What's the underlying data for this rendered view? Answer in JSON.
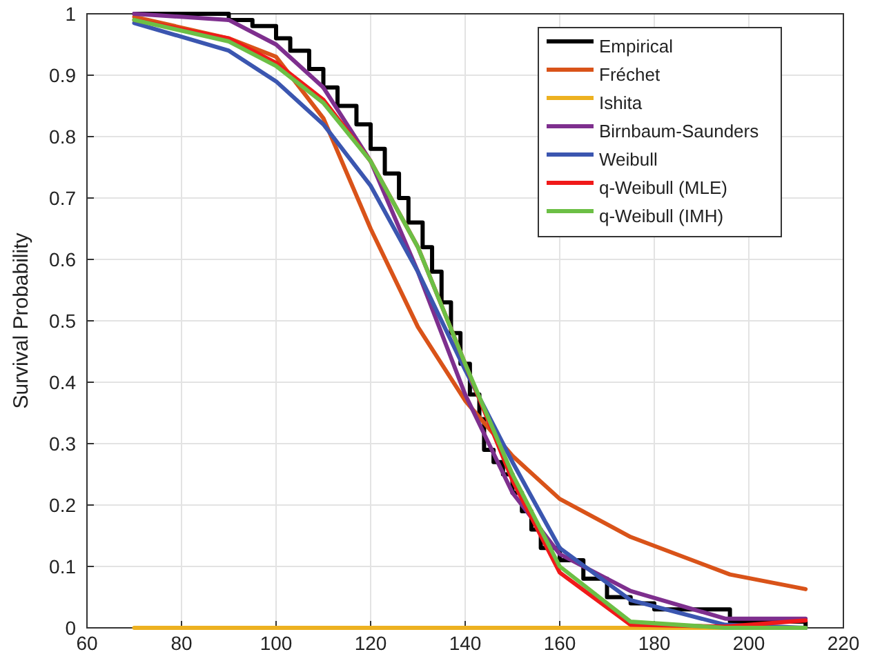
{
  "chart_data": {
    "type": "line",
    "ylabel": "Survival Probability",
    "xlim": [
      60,
      220
    ],
    "xticks": [
      60,
      80,
      100,
      120,
      140,
      160,
      180,
      200,
      220
    ],
    "ylim": [
      0,
      1
    ],
    "yticks": [
      0,
      0.1,
      0.2,
      0.3,
      0.4,
      0.5,
      0.6,
      0.7,
      0.8,
      0.9,
      1
    ],
    "grid": true,
    "legend": "top right",
    "series": [
      {
        "name": "Empirical",
        "type": "step",
        "color": "#000000",
        "x": [
          70,
          90,
          95,
          100,
          103,
          107,
          110,
          113,
          117,
          120,
          123,
          126,
          128,
          131,
          133,
          135,
          137,
          139,
          141,
          143,
          144,
          146,
          148,
          150,
          152,
          154,
          156,
          160,
          165,
          170,
          175,
          180,
          196,
          212
        ],
        "values": [
          1.0,
          0.99,
          0.98,
          0.96,
          0.94,
          0.91,
          0.88,
          0.85,
          0.82,
          0.78,
          0.74,
          0.7,
          0.66,
          0.62,
          0.58,
          0.53,
          0.48,
          0.43,
          0.38,
          0.34,
          0.29,
          0.27,
          0.25,
          0.22,
          0.19,
          0.16,
          0.13,
          0.11,
          0.08,
          0.05,
          0.04,
          0.03,
          0.01,
          0.0
        ]
      },
      {
        "name": "Fréchet",
        "color": "#d95319",
        "x": [
          70,
          90,
          100,
          110,
          120,
          130,
          140,
          150,
          160,
          175,
          196,
          212
        ],
        "values": [
          0.995,
          0.96,
          0.93,
          0.83,
          0.65,
          0.49,
          0.37,
          0.28,
          0.21,
          0.148,
          0.087,
          0.063
        ]
      },
      {
        "name": "Ishita",
        "color": "#edb120",
        "x": [
          70,
          212
        ],
        "values": [
          0,
          0
        ]
      },
      {
        "name": "Birnbaum-Saunders",
        "color": "#7e2f8e",
        "x": [
          70,
          90,
          100,
          110,
          120,
          130,
          140,
          150,
          160,
          175,
          195,
          212
        ],
        "values": [
          1.0,
          0.99,
          0.95,
          0.88,
          0.76,
          0.58,
          0.38,
          0.22,
          0.12,
          0.06,
          0.015,
          0.015
        ]
      },
      {
        "name": "Weibull",
        "color": "#3b56b0",
        "x": [
          70,
          90,
          100,
          110,
          120,
          130,
          140,
          150,
          160,
          175,
          195,
          212
        ],
        "values": [
          0.985,
          0.94,
          0.89,
          0.82,
          0.72,
          0.58,
          0.42,
          0.27,
          0.13,
          0.045,
          0.005,
          0.0
        ]
      },
      {
        "name": "q-Weibull (MLE)",
        "color": "#f01a1a",
        "x": [
          70,
          90,
          100,
          110,
          120,
          130,
          140,
          150,
          160,
          175,
          195,
          212
        ],
        "values": [
          0.99,
          0.96,
          0.92,
          0.86,
          0.76,
          0.62,
          0.43,
          0.24,
          0.09,
          0.005,
          0.002,
          0.012
        ]
      },
      {
        "name": "q-Weibull (IMH)",
        "color": "#6cbf45",
        "x": [
          70,
          90,
          100,
          110,
          120,
          130,
          140,
          150,
          160,
          175,
          195,
          212
        ],
        "values": [
          0.99,
          0.955,
          0.915,
          0.855,
          0.76,
          0.62,
          0.43,
          0.25,
          0.1,
          0.01,
          0.0,
          0.0
        ]
      }
    ]
  }
}
